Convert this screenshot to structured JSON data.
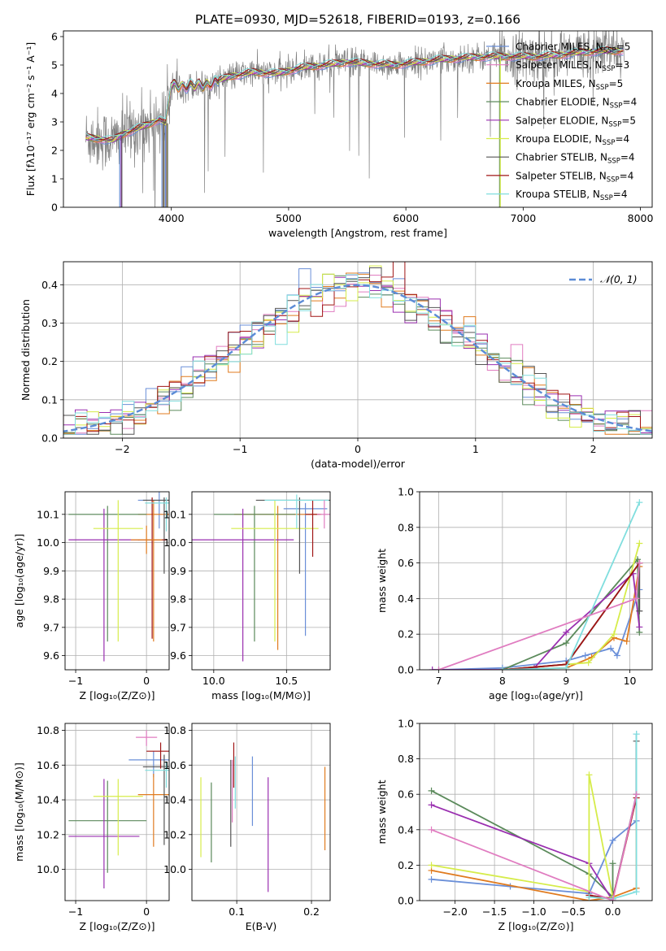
{
  "figure_title": "PLATE=0930, MJD=52618, FIBERID=0193, z=0.166",
  "colors": {
    "Chabrier MILES": "#6a8fd8",
    "Salpeter MILES": "#5b8a5b",
    "Kroupa MILES": "#e07b1f",
    "Chabrier ELODIE": "#5b8a5b",
    "Salpeter ELODIE": "#9a2fb0",
    "Kroupa ELODIE": "#d6ec4a",
    "Chabrier STELIB": "#555555",
    "Salpeter STELIB": "#a01515",
    "Kroupa STELIB": "#80dede",
    "data": "#808080",
    "normal": "#5b8bd6",
    "pink": "#e07cc0"
  },
  "legend_spectrum": [
    {
      "label": "Chabrier MILES, N",
      "sub": "SSP",
      "tail": "=5",
      "color": "#6a8fd8"
    },
    {
      "label": "Salpeter MILES, N",
      "sub": "SSP",
      "tail": "=3",
      "color": "#e07cc0"
    },
    {
      "label": "Kroupa MILES, N",
      "sub": "SSP",
      "tail": "=5",
      "color": "#e07b1f"
    },
    {
      "label": "Chabrier ELODIE, N",
      "sub": "SSP",
      "tail": "=4",
      "color": "#5b8a5b"
    },
    {
      "label": "Salpeter ELODIE, N",
      "sub": "SSP",
      "tail": "=5",
      "color": "#9a2fb0"
    },
    {
      "label": "Kroupa ELODIE, N",
      "sub": "SSP",
      "tail": "=4",
      "color": "#d6ec4a"
    },
    {
      "label": "Chabrier STELIB, N",
      "sub": "SSP",
      "tail": "=4",
      "color": "#555555"
    },
    {
      "label": "Salpeter STELIB, N",
      "sub": "SSP",
      "tail": "=4",
      "color": "#a01515"
    },
    {
      "label": "Kroupa STELIB, N",
      "sub": "SSP",
      "tail": "=4",
      "color": "#80dede"
    }
  ],
  "legend_hist": {
    "label": "𝒩(0, 1)"
  },
  "chart_data": [
    {
      "id": "spectrum",
      "type": "line",
      "xlabel": "wavelength [Angstrom, rest frame]",
      "ylabel": "Flux [fλ10⁻¹⁷ erg cm⁻² s⁻¹ A⁻¹]",
      "xlim": [
        3080,
        8100
      ],
      "ylim": [
        0,
        6.2
      ],
      "xticks": [
        "4000",
        "5000",
        "6000",
        "7000",
        "8000"
      ],
      "yticks": [
        "0",
        "1",
        "2",
        "3",
        "4",
        "5",
        "6"
      ],
      "model_x": [
        3270,
        3400,
        3500,
        3600,
        3700,
        3800,
        3900,
        3950,
        4000,
        4100,
        4300,
        4500,
        4700,
        4900,
        5100,
        5300,
        5500,
        5700,
        5900,
        6100,
        6300,
        6500,
        6700,
        6900,
        7100,
        7300,
        7500,
        7700,
        7850
      ],
      "model_y": [
        2.45,
        2.4,
        2.35,
        2.6,
        2.75,
        2.9,
        3.1,
        2.95,
        4.3,
        4.25,
        4.3,
        4.6,
        4.75,
        4.7,
        4.9,
        5.0,
        5.1,
        5.05,
        5.0,
        5.1,
        5.2,
        5.25,
        5.3,
        5.3,
        5.3,
        5.35,
        5.45,
        5.5,
        5.5
      ]
    },
    {
      "id": "residual_hist",
      "type": "bar",
      "xlabel": "(data-model)/error",
      "ylabel": "Normed distribution",
      "xlim": [
        -2.5,
        2.5
      ],
      "ylim": [
        0,
        0.46
      ],
      "xticks": [
        "−2",
        "−1",
        "0",
        "1",
        "2"
      ],
      "yticks": [
        "0.0",
        "0.1",
        "0.2",
        "0.3",
        "0.4"
      ],
      "bin_width": 0.1,
      "normal_curve": {
        "mu": 0,
        "sigma": 1
      }
    },
    {
      "id": "age_vs_Z",
      "type": "scatter",
      "xlabel": "Z [log₁₀(Z/Z⊙)]",
      "ylabel": "age  [log₁₀(age/yr)]",
      "xlim": [
        -1.15,
        0.32
      ],
      "ylim": [
        9.55,
        10.18
      ],
      "xticks": [
        "−1",
        "0"
      ],
      "yticks": [
        "9.6",
        "9.7",
        "9.8",
        "9.9",
        "10.0",
        "10.1"
      ],
      "points": [
        {
          "x": 0.18,
          "y": 10.15,
          "xerr": 0.3,
          "yerr": [
            0.1,
            0.2
          ],
          "color": "#6a8fd8"
        },
        {
          "x": 0.1,
          "y": 10.1,
          "xerr": 0.22,
          "yerr": [
            0.45,
            0.05
          ],
          "color": "#e07b1f"
        },
        {
          "x": -0.55,
          "y": 10.1,
          "xerr": 0.55,
          "yerr": [
            0.45,
            0.03
          ],
          "color": "#5b8a5b"
        },
        {
          "x": -0.6,
          "y": 10.01,
          "xerr": 0.5,
          "yerr": [
            0.43,
            0.11
          ],
          "color": "#9a2fb0"
        },
        {
          "x": -0.4,
          "y": 10.05,
          "xerr": 0.35,
          "yerr": [
            0.4,
            0.1
          ],
          "color": "#d6ec4a"
        },
        {
          "x": 0.25,
          "y": 10.15,
          "xerr": 0.3,
          "yerr": [
            0.26,
            0.01
          ],
          "color": "#555555"
        },
        {
          "x": 0.08,
          "y": 10.01,
          "xerr": 0.2,
          "yerr": [
            0.35,
            0.15
          ],
          "color": "#a01515"
        },
        {
          "x": 0.28,
          "y": 10.14,
          "xerr": 0.3,
          "yerr": [
            0.1,
            0.02
          ],
          "color": "#80dede"
        },
        {
          "x": 0.0,
          "y": 10.01,
          "xerr": 0.22,
          "yerr": [
            0.05,
            0.05
          ],
          "color": "#e07b1f"
        }
      ]
    },
    {
      "id": "age_vs_mass",
      "type": "scatter",
      "xlabel": "mass [log₁₀(M/M⊙)]",
      "ylabel": "",
      "xlim": [
        9.85,
        10.8
      ],
      "ylim": [
        9.55,
        10.18
      ],
      "xticks": [
        "10.0",
        "10.5"
      ],
      "yticks": [
        "9.6",
        "9.7",
        "9.8",
        "9.9",
        "10.0",
        "10.1"
      ],
      "points": [
        {
          "x": 10.63,
          "y": 10.12,
          "xerr": 0.15,
          "yerr": [
            0.45,
            0.02
          ],
          "color": "#6a8fd8"
        },
        {
          "x": 10.44,
          "y": 10.1,
          "xerr": 0.3,
          "yerr": [
            0.48,
            0.03
          ],
          "color": "#e07b1f"
        },
        {
          "x": 10.28,
          "y": 10.1,
          "xerr": 0.28,
          "yerr": [
            0.45,
            0.03
          ],
          "color": "#5b8a5b"
        },
        {
          "x": 10.2,
          "y": 10.01,
          "xerr": 0.35,
          "yerr": [
            0.43,
            0.11
          ],
          "color": "#9a2fb0"
        },
        {
          "x": 10.42,
          "y": 10.05,
          "xerr": 0.3,
          "yerr": [
            0.4,
            0.1
          ],
          "color": "#d6ec4a"
        },
        {
          "x": 10.59,
          "y": 10.15,
          "xerr": 0.3,
          "yerr": [
            0.26,
            0.01
          ],
          "color": "#555555"
        },
        {
          "x": 10.68,
          "y": 10.1,
          "xerr": 0.05,
          "yerr": [
            0.15,
            0.05
          ],
          "color": "#a01515"
        },
        {
          "x": 10.57,
          "y": 10.15,
          "xerr": 0.22,
          "yerr": [
            0.1,
            0.02
          ],
          "color": "#80dede"
        },
        {
          "x": 10.76,
          "y": 10.1,
          "xerr": 0.05,
          "yerr": [
            0.05,
            0.05
          ],
          "color": "#e07cc0"
        }
      ]
    },
    {
      "id": "weight_vs_age",
      "type": "line",
      "xlabel": "age  [log₁₀(age/yr)]",
      "ylabel": "mass weight",
      "xlim": [
        6.7,
        10.35
      ],
      "ylim": [
        0,
        1.0
      ],
      "xticks": [
        "7",
        "8",
        "9",
        "10"
      ],
      "yticks": [
        "0.0",
        "0.2",
        "0.4",
        "0.6",
        "0.8",
        "1.0"
      ],
      "series": [
        {
          "color": "#6a8fd8",
          "x": [
            7.0,
            8.0,
            9.0,
            9.3,
            9.7,
            9.8,
            10.15
          ],
          "y": [
            0.0,
            0.01,
            0.05,
            0.08,
            0.12,
            0.08,
            0.45
          ]
        },
        {
          "color": "#e07b1f",
          "x": [
            8.0,
            9.0,
            9.4,
            9.75,
            9.95,
            10.15
          ],
          "y": [
            0.0,
            0.01,
            0.07,
            0.18,
            0.16,
            0.58
          ]
        },
        {
          "color": "#5b8a5b",
          "x": [
            8.0,
            9.0,
            10.12,
            10.15
          ],
          "y": [
            0.0,
            0.15,
            0.62,
            0.21
          ]
        },
        {
          "color": "#9a2fb0",
          "x": [
            6.9,
            8.0,
            8.5,
            9.0,
            10.05,
            10.15
          ],
          "y": [
            0.0,
            0.0,
            0.01,
            0.21,
            0.54,
            0.24
          ]
        },
        {
          "color": "#d6ec4a",
          "x": [
            8.0,
            9.35,
            9.75,
            10.15
          ],
          "y": [
            0.0,
            0.04,
            0.2,
            0.71
          ]
        },
        {
          "color": "#555555",
          "x": [
            8.0,
            9.0,
            10.15,
            10.15
          ],
          "y": [
            0.0,
            0.03,
            0.6,
            0.33
          ]
        },
        {
          "color": "#a01515",
          "x": [
            8.0,
            9.0,
            10.15
          ],
          "y": [
            0.0,
            0.03,
            0.6
          ]
        },
        {
          "color": "#80dede",
          "x": [
            8.0,
            9.0,
            10.15
          ],
          "y": [
            0.0,
            0.01,
            0.94
          ]
        },
        {
          "color": "#e07cc0",
          "x": [
            7.0,
            10.1,
            10.15
          ],
          "y": [
            0.0,
            0.4,
            0.6
          ]
        }
      ]
    },
    {
      "id": "mass_vs_Z",
      "type": "scatter",
      "xlabel": "Z [log₁₀(Z/Z⊙)]",
      "ylabel": "mass [log₁₀(M/M⊙)]",
      "xlim": [
        -1.15,
        0.32
      ],
      "ylim": [
        9.82,
        10.84
      ],
      "xticks": [
        "−1",
        "0"
      ],
      "yticks": [
        "10.0",
        "10.2",
        "10.4",
        "10.6",
        "10.8"
      ],
      "points": [
        {
          "x": 0.1,
          "y": 10.63,
          "xerr": 0.35,
          "yerr": [
            0.1,
            0.05
          ],
          "color": "#6a8fd8"
        },
        {
          "x": 0.1,
          "y": 10.43,
          "xerr": 0.22,
          "yerr": [
            0.3,
            0.12
          ],
          "color": "#e07b1f"
        },
        {
          "x": -0.55,
          "y": 10.28,
          "xerr": 0.55,
          "yerr": [
            0.3,
            0.23
          ],
          "color": "#5b8a5b"
        },
        {
          "x": -0.6,
          "y": 10.19,
          "xerr": 0.5,
          "yerr": [
            0.3,
            0.33
          ],
          "color": "#9a2fb0"
        },
        {
          "x": -0.4,
          "y": 10.42,
          "xerr": 0.35,
          "yerr": [
            0.34,
            0.1
          ],
          "color": "#d6ec4a"
        },
        {
          "x": 0.25,
          "y": 10.59,
          "xerr": 0.3,
          "yerr": [
            0.45,
            0.07
          ],
          "color": "#555555"
        },
        {
          "x": 0.2,
          "y": 10.68,
          "xerr": 0.2,
          "yerr": [
            0.1,
            0.05
          ],
          "color": "#a01515"
        },
        {
          "x": 0.28,
          "y": 10.57,
          "xerr": 0.3,
          "yerr": [
            0.1,
            0.05
          ],
          "color": "#80dede"
        },
        {
          "x": 0.0,
          "y": 10.76,
          "xerr": 0.15,
          "yerr": [
            0.05,
            0.04
          ],
          "color": "#e07cc0"
        }
      ]
    },
    {
      "id": "mass_vs_ebv",
      "type": "scatter",
      "xlabel": "E(B-V)",
      "ylabel": "",
      "xlim": [
        0.04,
        0.225
      ],
      "ylim": [
        9.82,
        10.84
      ],
      "xticks": [
        "0.1",
        "0.2"
      ],
      "yticks": [
        "10.0",
        "10.2",
        "10.4",
        "10.6",
        "10.8"
      ],
      "points": [
        {
          "x": 0.121,
          "y": 10.45,
          "yerr": [
            0.2,
            0.2
          ],
          "color": "#6a8fd8"
        },
        {
          "x": 0.218,
          "y": 10.35,
          "yerr": [
            0.24,
            0.24
          ],
          "color": "#e07b1f"
        },
        {
          "x": 0.066,
          "y": 10.27,
          "yerr": [
            0.23,
            0.23
          ],
          "color": "#5b8a5b"
        },
        {
          "x": 0.142,
          "y": 10.2,
          "yerr": [
            0.33,
            0.33
          ],
          "color": "#9a2fb0"
        },
        {
          "x": 0.052,
          "y": 10.3,
          "yerr": [
            0.23,
            0.23
          ],
          "color": "#d6ec4a"
        },
        {
          "x": 0.092,
          "y": 10.38,
          "yerr": [
            0.25,
            0.25
          ],
          "color": "#555555"
        },
        {
          "x": 0.096,
          "y": 10.6,
          "yerr": [
            0.13,
            0.13
          ],
          "color": "#a01515"
        },
        {
          "x": 0.098,
          "y": 10.5,
          "yerr": [
            0.15,
            0.15
          ],
          "color": "#80dede"
        },
        {
          "x": 0.094,
          "y": 10.45,
          "yerr": [
            0.18,
            0.18
          ],
          "color": "#e07cc0"
        }
      ]
    },
    {
      "id": "weight_vs_Z",
      "type": "line",
      "xlabel": "Z [log₁₀(Z/Z⊙)]",
      "ylabel": "mass weight",
      "xlim": [
        -2.45,
        0.5
      ],
      "ylim": [
        0,
        1.0
      ],
      "xticks": [
        "−2.0",
        "−1.5",
        "−1.0",
        "−0.5",
        "0.0"
      ],
      "yticks": [
        "0.0",
        "0.2",
        "0.4",
        "0.6",
        "0.8",
        "1.0"
      ],
      "series": [
        {
          "color": "#6a8fd8",
          "x": [
            -2.3,
            -1.3,
            -0.3,
            0.0,
            0.3,
            0.3
          ],
          "y": [
            0.12,
            0.08,
            0.04,
            0.34,
            0.45,
            0.94
          ]
        },
        {
          "color": "#e07b1f",
          "x": [
            -2.3,
            -0.3,
            0.0,
            0.3,
            0.3
          ],
          "y": [
            0.17,
            0.0,
            0.02,
            0.07,
            0.58
          ]
        },
        {
          "color": "#5b8a5b",
          "x": [
            -2.3,
            -0.3,
            0.0,
            0.0
          ],
          "y": [
            0.62,
            0.15,
            0.02,
            0.21
          ]
        },
        {
          "color": "#9a2fb0",
          "x": [
            -2.3,
            -0.3,
            0.0
          ],
          "y": [
            0.54,
            0.21,
            0.0
          ]
        },
        {
          "color": "#d6ec4a",
          "x": [
            -2.3,
            -0.3,
            -0.3,
            0.0
          ],
          "y": [
            0.2,
            0.05,
            0.71,
            0.02
          ]
        },
        {
          "color": "#555555",
          "x": [
            -0.3,
            0.0,
            0.3,
            0.3
          ],
          "y": [
            0.03,
            0.01,
            0.6,
            0.9
          ]
        },
        {
          "color": "#a01515",
          "x": [
            -0.3,
            0.0,
            0.3
          ],
          "y": [
            0.03,
            0.01,
            0.58
          ]
        },
        {
          "color": "#80dede",
          "x": [
            -0.3,
            0.0,
            0.3,
            0.3
          ],
          "y": [
            0.02,
            0.01,
            0.05,
            0.94
          ]
        },
        {
          "color": "#e07cc0",
          "x": [
            -2.3,
            0.0,
            0.3
          ],
          "y": [
            0.4,
            0.0,
            0.6
          ]
        }
      ]
    }
  ]
}
